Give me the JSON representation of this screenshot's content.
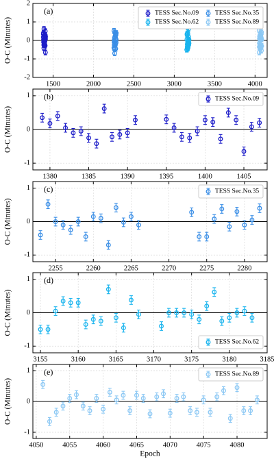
{
  "chart_data": [
    {
      "type": "errorbar",
      "annotation": "(a)",
      "y_label": "O-C (Minutes)",
      "xlim": [
        1250,
        4150
      ],
      "xticks": [
        1500,
        2000,
        2500,
        3000,
        3500,
        4000
      ],
      "ylim": [
        -2,
        2
      ],
      "yticks": [
        -2,
        -1,
        0,
        1,
        2
      ],
      "grid": true,
      "legend": "upper right",
      "legend_columns": 2,
      "series": [
        {
          "name": "TESS Sec.No.09",
          "color": "#1c1cc8",
          "error": 0.13,
          "x": [
            1379,
            1380,
            1381,
            1382,
            1383,
            1384,
            1385,
            1386,
            1387,
            1388,
            1389,
            1390,
            1391,
            1395,
            1396,
            1397,
            1398,
            1399,
            1400,
            1401,
            1402,
            1403,
            1404,
            1405,
            1406,
            1407
          ],
          "values": [
            0.35,
            0.18,
            0.4,
            0.05,
            -0.1,
            -0.05,
            -0.25,
            -0.42,
            0.62,
            -0.22,
            -0.15,
            -0.1,
            0.28,
            0.3,
            0.05,
            -0.22,
            -0.25,
            -0.05,
            0.28,
            0.22,
            -0.28,
            0.5,
            0.28,
            -0.65,
            0.08,
            0.2
          ]
        },
        {
          "name": "TESS Sec.No.35",
          "color": "#3a8ee6",
          "error": 0.13,
          "x": [
            2253,
            2254,
            2255,
            2256,
            2257,
            2258,
            2259,
            2260,
            2261,
            2262,
            2263,
            2264,
            2265,
            2266,
            2273,
            2274,
            2275,
            2276,
            2277,
            2278,
            2279,
            2280,
            2281,
            2282
          ],
          "values": [
            -0.4,
            0.52,
            0.0,
            -0.1,
            -0.25,
            0.0,
            -0.45,
            0.15,
            0.1,
            -0.7,
            0.42,
            -0.02,
            0.15,
            -0.1,
            0.28,
            -0.45,
            -0.45,
            0.08,
            0.38,
            -0.15,
            0.3,
            -0.1,
            0.05,
            0.4
          ]
        },
        {
          "name": "TESS Sec.No.62",
          "color": "#19b4ee",
          "error": 0.13,
          "x": [
            3155,
            3156,
            3157,
            3158,
            3159,
            3160,
            3161,
            3162,
            3163,
            3164,
            3165,
            3166,
            3167,
            3168,
            3171,
            3172,
            3173,
            3174,
            3175,
            3176,
            3177,
            3178,
            3179,
            3180,
            3181,
            3182,
            3183
          ],
          "values": [
            -0.5,
            -0.5,
            0.05,
            0.35,
            0.3,
            0.3,
            -0.35,
            -0.2,
            -0.25,
            0.7,
            -0.15,
            -0.45,
            0.38,
            -0.05,
            -0.4,
            0.0,
            0.0,
            0.0,
            -0.05,
            -0.2,
            0.2,
            0.62,
            -0.25,
            -0.15,
            0.0,
            0.05,
            -0.15
          ]
        },
        {
          "name": "TESS Sec.No.89",
          "color": "#8cc8f4",
          "error": 0.13,
          "x": [
            4051,
            4052,
            4053,
            4054,
            4055,
            4056,
            4057,
            4058,
            4059,
            4060,
            4061,
            4062,
            4063,
            4064,
            4065,
            4066,
            4067,
            4068,
            4069,
            4070,
            4071,
            4072,
            4073,
            4074,
            4075,
            4076,
            4077,
            4078,
            4079,
            4080,
            4081,
            4082,
            4083
          ],
          "values": [
            0.55,
            -0.65,
            -0.35,
            -0.15,
            0.1,
            0.22,
            -0.15,
            -0.3,
            0.1,
            -0.25,
            0.3,
            0.05,
            0.2,
            -0.3,
            0.2,
            0.1,
            -0.4,
            0.15,
            0.25,
            -0.38,
            0.1,
            0.15,
            -0.3,
            -0.35,
            0.05,
            -0.35,
            0.15,
            0.35,
            -0.55,
            0.45,
            -0.3,
            -0.3,
            0.05
          ]
        }
      ]
    },
    {
      "type": "errorbar",
      "annotation": "(b)",
      "y_label": "O-C (Minutes)",
      "xlim": [
        1377.8,
        1408
      ],
      "xticks": [
        1380,
        1385,
        1390,
        1395,
        1400,
        1405
      ],
      "ylim": [
        -1.2,
        1.2
      ],
      "yticks": [
        -1,
        0,
        1
      ],
      "grid": true,
      "legend": "upper right",
      "series": [
        {
          "name": "TESS Sec.No.09",
          "color": "#1c1cc8",
          "error": 0.13,
          "x": [
            1379,
            1380,
            1381,
            1382,
            1383,
            1384,
            1385,
            1386,
            1387,
            1388,
            1389,
            1390,
            1391,
            1395,
            1396,
            1397,
            1398,
            1399,
            1400,
            1401,
            1402,
            1403,
            1404,
            1405,
            1406,
            1407
          ],
          "values": [
            0.35,
            0.18,
            0.4,
            0.05,
            -0.1,
            -0.05,
            -0.25,
            -0.42,
            0.62,
            -0.22,
            -0.15,
            -0.1,
            0.28,
            0.3,
            0.05,
            -0.22,
            -0.25,
            -0.05,
            0.28,
            0.22,
            -0.28,
            0.5,
            0.28,
            -0.65,
            0.08,
            0.2
          ]
        }
      ]
    },
    {
      "type": "errorbar",
      "annotation": "(c)",
      "y_label": "O-C (Minutes)",
      "xlim": [
        2252,
        2283
      ],
      "xticks": [
        2255,
        2260,
        2265,
        2270,
        2275,
        2280
      ],
      "ylim": [
        -1.2,
        1.2
      ],
      "yticks": [
        -1,
        0,
        1
      ],
      "grid": true,
      "legend": "upper right",
      "series": [
        {
          "name": "TESS Sec.No.35",
          "color": "#3a8ee6",
          "error": 0.13,
          "x": [
            2253,
            2254,
            2255,
            2256,
            2257,
            2258,
            2259,
            2260,
            2261,
            2262,
            2263,
            2264,
            2265,
            2266,
            2273,
            2274,
            2275,
            2276,
            2277,
            2278,
            2279,
            2280,
            2281,
            2282
          ],
          "values": [
            -0.4,
            0.52,
            0.0,
            -0.1,
            -0.25,
            0.0,
            -0.45,
            0.15,
            0.1,
            -0.7,
            0.42,
            -0.02,
            0.15,
            -0.1,
            0.28,
            -0.45,
            -0.45,
            0.08,
            0.38,
            -0.15,
            0.3,
            -0.1,
            0.05,
            0.4
          ]
        }
      ]
    },
    {
      "type": "errorbar",
      "annotation": "(d)",
      "y_label": "O-C (Minutes)",
      "xlim": [
        3154,
        3185
      ],
      "xticks": [
        3155,
        3160,
        3165,
        3170,
        3175,
        3180,
        3185
      ],
      "ylim": [
        -1.2,
        1.2
      ],
      "yticks": [
        -1,
        0,
        1
      ],
      "grid": true,
      "legend": "lower right",
      "series": [
        {
          "name": "TESS Sec.No.62",
          "color": "#19b4ee",
          "error": 0.13,
          "x": [
            3155,
            3156,
            3157,
            3158,
            3159,
            3160,
            3161,
            3162,
            3163,
            3164,
            3165,
            3166,
            3167,
            3168,
            3171,
            3172,
            3173,
            3174,
            3175,
            3176,
            3177,
            3178,
            3179,
            3180,
            3181,
            3182,
            3183
          ],
          "values": [
            -0.5,
            -0.5,
            0.05,
            0.35,
            0.3,
            0.3,
            -0.35,
            -0.2,
            -0.25,
            0.7,
            -0.15,
            -0.45,
            0.38,
            -0.05,
            -0.4,
            0.0,
            0.0,
            0.0,
            -0.05,
            -0.2,
            0.2,
            0.62,
            -0.25,
            -0.15,
            0.0,
            0.05,
            -0.15
          ]
        }
      ]
    },
    {
      "type": "errorbar",
      "annotation": "(e)",
      "y_label": "O-C (Minutes)",
      "x_label": "Epoch",
      "xlim": [
        4049.5,
        4084.5
      ],
      "xticks": [
        4050,
        4055,
        4060,
        4065,
        4070,
        4075,
        4080
      ],
      "ylim": [
        -1.2,
        1.2
      ],
      "yticks": [
        -1,
        0,
        1
      ],
      "grid": true,
      "legend": "upper right",
      "series": [
        {
          "name": "TESS Sec.No.89",
          "color": "#8cc8f4",
          "error": 0.13,
          "x": [
            4051,
            4052,
            4053,
            4054,
            4055,
            4056,
            4057,
            4058,
            4059,
            4060,
            4061,
            4062,
            4063,
            4064,
            4065,
            4066,
            4067,
            4068,
            4069,
            4070,
            4071,
            4072,
            4073,
            4074,
            4075,
            4076,
            4077,
            4078,
            4079,
            4080,
            4081,
            4082,
            4083
          ],
          "values": [
            0.55,
            -0.65,
            -0.35,
            -0.15,
            0.1,
            0.22,
            -0.15,
            -0.3,
            0.1,
            -0.25,
            0.3,
            0.05,
            0.2,
            -0.3,
            0.2,
            0.1,
            -0.4,
            0.15,
            0.25,
            -0.38,
            0.1,
            0.15,
            -0.3,
            -0.35,
            0.05,
            -0.35,
            0.15,
            0.35,
            -0.55,
            0.45,
            -0.3,
            -0.3,
            0.05
          ]
        }
      ]
    }
  ]
}
